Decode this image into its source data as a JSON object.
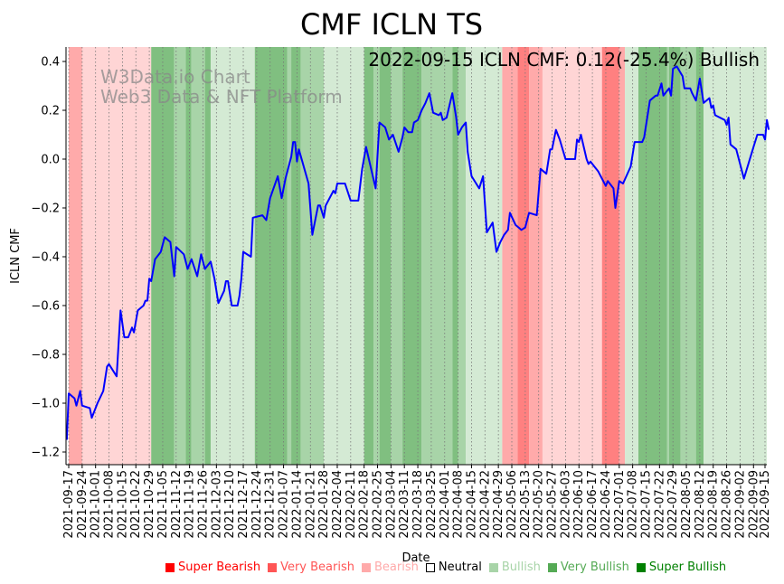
{
  "chart_data": {
    "type": "line",
    "title": "CMF ICLN TS",
    "xlabel": "Date",
    "ylabel": "ICLN CMF",
    "annotation": "2022-09-15 ICLN CMF: 0.12(-25.4%) Bullish",
    "watermark": [
      "W3Data.io Chart",
      "Web3 Data & NFT Platform"
    ],
    "ylim": [
      -1.25,
      0.46
    ],
    "yticks": [
      -1.2,
      -1.0,
      -0.8,
      -0.6,
      -0.4,
      -0.2,
      0.0,
      0.2,
      0.4
    ],
    "ytick_labels": [
      "−1.2",
      "−1.0",
      "−0.8",
      "−0.6",
      "−0.4",
      "−0.2",
      "0.0",
      "0.2",
      "0.4"
    ],
    "x_unit": "days since 2021-09-17",
    "xlim": [
      -1.5,
      365
    ],
    "xticks": [
      0,
      7,
      14,
      21,
      28,
      35,
      42,
      49,
      56,
      63,
      70,
      77,
      84,
      91,
      98,
      105,
      112,
      119,
      126,
      133,
      140,
      147,
      154,
      161,
      168,
      175,
      182,
      189,
      196,
      203,
      210,
      217,
      224,
      231,
      238,
      245,
      252,
      259,
      266,
      273,
      280,
      287,
      294,
      301,
      308,
      315,
      322,
      329,
      336,
      343,
      350,
      357,
      363
    ],
    "xtick_labels": [
      "2021-09-17",
      "2021-09-24",
      "2021-10-01",
      "2021-10-08",
      "2021-10-15",
      "2021-10-22",
      "2021-10-29",
      "2021-11-05",
      "2021-11-12",
      "2021-11-19",
      "2021-11-26",
      "2021-12-03",
      "2021-12-10",
      "2021-12-17",
      "2021-12-24",
      "2021-12-31",
      "2022-01-07",
      "2022-01-14",
      "2022-01-21",
      "2022-01-28",
      "2022-02-04",
      "2022-02-11",
      "2022-02-18",
      "2022-02-25",
      "2022-03-04",
      "2022-03-11",
      "2022-03-18",
      "2022-03-25",
      "2022-04-01",
      "2022-04-08",
      "2022-04-15",
      "2022-04-22",
      "2022-04-29",
      "2022-05-06",
      "2022-05-13",
      "2022-05-20",
      "2022-05-27",
      "2022-06-03",
      "2022-06-10",
      "2022-06-17",
      "2022-06-24",
      "2022-07-01",
      "2022-07-08",
      "2022-07-15",
      "2022-07-22",
      "2022-07-29",
      "2022-08-05",
      "2022-08-12",
      "2022-08-19",
      "2022-08-26",
      "2022-09-02",
      "2022-09-09",
      "2022-09-15"
    ],
    "grid": "vertical dotted",
    "line_color": "#0000ff",
    "series": [
      {
        "name": "ICLN CMF",
        "points": [
          [
            -1,
            -1.15
          ],
          [
            0,
            -0.96
          ],
          [
            3,
            -0.98
          ],
          [
            4,
            -1.01
          ],
          [
            6,
            -0.95
          ],
          [
            7,
            -1.01
          ],
          [
            11,
            -1.02
          ],
          [
            12,
            -1.06
          ],
          [
            15,
            -1.0
          ],
          [
            18,
            -0.95
          ],
          [
            20,
            -0.85
          ],
          [
            21,
            -0.84
          ],
          [
            25,
            -0.89
          ],
          [
            27,
            -0.62
          ],
          [
            29,
            -0.73
          ],
          [
            31,
            -0.73
          ],
          [
            33,
            -0.69
          ],
          [
            34,
            -0.71
          ],
          [
            36,
            -0.62
          ],
          [
            39,
            -0.6
          ],
          [
            40,
            -0.58
          ],
          [
            41,
            -0.58
          ],
          [
            42,
            -0.49
          ],
          [
            43,
            -0.5
          ],
          [
            45,
            -0.41
          ],
          [
            48,
            -0.38
          ],
          [
            50,
            -0.32
          ],
          [
            53,
            -0.34
          ],
          [
            55,
            -0.48
          ],
          [
            56,
            -0.36
          ],
          [
            60,
            -0.39
          ],
          [
            62,
            -0.45
          ],
          [
            64,
            -0.41
          ],
          [
            67,
            -0.48
          ],
          [
            69,
            -0.39
          ],
          [
            71,
            -0.45
          ],
          [
            74,
            -0.42
          ],
          [
            76,
            -0.49
          ],
          [
            78,
            -0.59
          ],
          [
            81,
            -0.54
          ],
          [
            82,
            -0.5
          ],
          [
            83,
            -0.5
          ],
          [
            85,
            -0.6
          ],
          [
            88,
            -0.6
          ],
          [
            89,
            -0.56
          ],
          [
            90,
            -0.49
          ],
          [
            91,
            -0.38
          ],
          [
            95,
            -0.4
          ],
          [
            96,
            -0.24
          ],
          [
            101,
            -0.23
          ],
          [
            103,
            -0.25
          ],
          [
            105,
            -0.16
          ],
          [
            109,
            -0.07
          ],
          [
            111,
            -0.16
          ],
          [
            113,
            -0.08
          ],
          [
            116,
            0.01
          ],
          [
            117,
            0.07
          ],
          [
            118,
            0.07
          ],
          [
            119,
            -0.01
          ],
          [
            120,
            0.04
          ],
          [
            125,
            -0.1
          ],
          [
            127,
            -0.31
          ],
          [
            130,
            -0.19
          ],
          [
            131,
            -0.19
          ],
          [
            133,
            -0.24
          ],
          [
            134,
            -0.19
          ],
          [
            138,
            -0.13
          ],
          [
            139,
            -0.14
          ],
          [
            140,
            -0.1
          ],
          [
            144,
            -0.1
          ],
          [
            147,
            -0.17
          ],
          [
            148,
            -0.17
          ],
          [
            151,
            -0.17
          ],
          [
            153,
            -0.04
          ],
          [
            155,
            0.05
          ],
          [
            160,
            -0.12
          ],
          [
            162,
            0.15
          ],
          [
            165,
            0.13
          ],
          [
            167,
            0.08
          ],
          [
            169,
            0.1
          ],
          [
            172,
            0.03
          ],
          [
            174,
            0.09
          ],
          [
            175,
            0.13
          ],
          [
            177,
            0.11
          ],
          [
            179,
            0.11
          ],
          [
            180,
            0.15
          ],
          [
            182,
            0.16
          ],
          [
            184,
            0.2
          ],
          [
            186,
            0.23
          ],
          [
            188,
            0.27
          ],
          [
            190,
            0.19
          ],
          [
            193,
            0.18
          ],
          [
            194,
            0.19
          ],
          [
            195,
            0.16
          ],
          [
            197,
            0.17
          ],
          [
            200,
            0.27
          ],
          [
            202,
            0.17
          ],
          [
            203,
            0.1
          ],
          [
            205,
            0.13
          ],
          [
            207,
            0.15
          ],
          [
            208,
            0.03
          ],
          [
            210,
            -0.07
          ],
          [
            214,
            -0.12
          ],
          [
            216,
            -0.07
          ],
          [
            218,
            -0.3
          ],
          [
            221,
            -0.26
          ],
          [
            223,
            -0.38
          ],
          [
            225,
            -0.34
          ],
          [
            227,
            -0.31
          ],
          [
            229,
            -0.29
          ],
          [
            230,
            -0.22
          ],
          [
            233,
            -0.27
          ],
          [
            236,
            -0.29
          ],
          [
            238,
            -0.28
          ],
          [
            240,
            -0.22
          ],
          [
            244,
            -0.23
          ],
          [
            246,
            -0.04
          ],
          [
            249,
            -0.06
          ],
          [
            251,
            0.04
          ],
          [
            252,
            0.04
          ],
          [
            254,
            0.12
          ],
          [
            256,
            0.08
          ],
          [
            259,
            0.0
          ],
          [
            260,
            0.0
          ],
          [
            264,
            0.0
          ],
          [
            265,
            0.08
          ],
          [
            266,
            0.07
          ],
          [
            267,
            0.1
          ],
          [
            270,
            0.0
          ],
          [
            271,
            -0.02
          ],
          [
            272,
            -0.01
          ],
          [
            274,
            -0.03
          ],
          [
            276,
            -0.05
          ],
          [
            280,
            -0.11
          ],
          [
            281,
            -0.09
          ],
          [
            284,
            -0.12
          ],
          [
            285,
            -0.2
          ],
          [
            287,
            -0.09
          ],
          [
            289,
            -0.1
          ],
          [
            293,
            -0.03
          ],
          [
            295,
            0.07
          ],
          [
            299,
            0.07
          ],
          [
            300,
            0.09
          ],
          [
            303,
            0.24
          ],
          [
            306,
            0.26
          ],
          [
            307,
            0.26
          ],
          [
            309,
            0.31
          ],
          [
            310,
            0.26
          ],
          [
            313,
            0.29
          ],
          [
            314,
            0.26
          ],
          [
            315,
            0.37
          ],
          [
            317,
            0.38
          ],
          [
            320,
            0.34
          ],
          [
            321,
            0.29
          ],
          [
            324,
            0.29
          ],
          [
            325,
            0.27
          ],
          [
            327,
            0.24
          ],
          [
            329,
            0.33
          ],
          [
            331,
            0.23
          ],
          [
            334,
            0.25
          ],
          [
            335,
            0.21
          ],
          [
            336,
            0.22
          ],
          [
            337,
            0.18
          ],
          [
            342,
            0.16
          ],
          [
            343,
            0.14
          ],
          [
            344,
            0.17
          ],
          [
            345,
            0.06
          ],
          [
            348,
            0.04
          ],
          [
            352,
            -0.08
          ],
          [
            357,
            0.05
          ],
          [
            359,
            0.1
          ],
          [
            362,
            0.1
          ],
          [
            363,
            0.08
          ],
          [
            364,
            0.16
          ],
          [
            365,
            0.12
          ]
        ]
      }
    ],
    "bands": [
      {
        "from": 0,
        "to": 7,
        "state": "very_bearish"
      },
      {
        "from": 7,
        "to": 43,
        "state": "bearish"
      },
      {
        "from": 43,
        "to": 55,
        "state": "super_bullish"
      },
      {
        "from": 55,
        "to": 61,
        "state": "very_bullish"
      },
      {
        "from": 61,
        "to": 64,
        "state": "super_bullish"
      },
      {
        "from": 64,
        "to": 71,
        "state": "very_bullish"
      },
      {
        "from": 71,
        "to": 74,
        "state": "super_bullish"
      },
      {
        "from": 74,
        "to": 97,
        "state": "bullish"
      },
      {
        "from": 97,
        "to": 114,
        "state": "super_bullish"
      },
      {
        "from": 114,
        "to": 116,
        "state": "very_bullish"
      },
      {
        "from": 116,
        "to": 121,
        "state": "super_bullish"
      },
      {
        "from": 121,
        "to": 133,
        "state": "very_bullish"
      },
      {
        "from": 133,
        "to": 154,
        "state": "bullish"
      },
      {
        "from": 154,
        "to": 159,
        "state": "super_bullish"
      },
      {
        "from": 159,
        "to": 162,
        "state": "very_bullish"
      },
      {
        "from": 162,
        "to": 168,
        "state": "super_bullish"
      },
      {
        "from": 168,
        "to": 174,
        "state": "very_bullish"
      },
      {
        "from": 174,
        "to": 184,
        "state": "super_bullish"
      },
      {
        "from": 184,
        "to": 200,
        "state": "very_bullish"
      },
      {
        "from": 200,
        "to": 203,
        "state": "super_bullish"
      },
      {
        "from": 203,
        "to": 207,
        "state": "very_bullish"
      },
      {
        "from": 207,
        "to": 226,
        "state": "bullish"
      },
      {
        "from": 226,
        "to": 234,
        "state": "very_bearish"
      },
      {
        "from": 234,
        "to": 240,
        "state": "super_bearish"
      },
      {
        "from": 240,
        "to": 247,
        "state": "very_bearish"
      },
      {
        "from": 247,
        "to": 278,
        "state": "bearish"
      },
      {
        "from": 278,
        "to": 287,
        "state": "super_bearish"
      },
      {
        "from": 287,
        "to": 290,
        "state": "very_bearish"
      },
      {
        "from": 290,
        "to": 297,
        "state": "bullish"
      },
      {
        "from": 297,
        "to": 312,
        "state": "super_bullish"
      },
      {
        "from": 312,
        "to": 313,
        "state": "very_bullish"
      },
      {
        "from": 313,
        "to": 319,
        "state": "super_bullish"
      },
      {
        "from": 319,
        "to": 327,
        "state": "very_bullish"
      },
      {
        "from": 327,
        "to": 331,
        "state": "super_bullish"
      },
      {
        "from": 331,
        "to": 365,
        "state": "bullish"
      }
    ],
    "band_colors": {
      "super_bearish": "#ff8080",
      "very_bearish": "#ffaaaa",
      "bearish": "#ffd5d5",
      "bullish": "#d4ead4",
      "very_bullish": "#a8d4a8",
      "super_bullish": "#80bf80"
    },
    "legend_position": "bottom",
    "legend": [
      {
        "label": "Super Bearish",
        "color": "#ff0000",
        "text_color": "#ff0000"
      },
      {
        "label": "Very Bearish",
        "color": "#ff5555",
        "text_color": "#ff5555"
      },
      {
        "label": "Bearish",
        "color": "#ffaaaa",
        "text_color": "#ffaaaa"
      },
      {
        "label": "Neutral",
        "color": "#ffffff",
        "text_color": "#000000"
      },
      {
        "label": "Bullish",
        "color": "#a8d4a8",
        "text_color": "#a8d4a8"
      },
      {
        "label": "Very Bullish",
        "color": "#55aa55",
        "text_color": "#55aa55"
      },
      {
        "label": "Super Bullish",
        "color": "#008000",
        "text_color": "#008000"
      }
    ]
  }
}
